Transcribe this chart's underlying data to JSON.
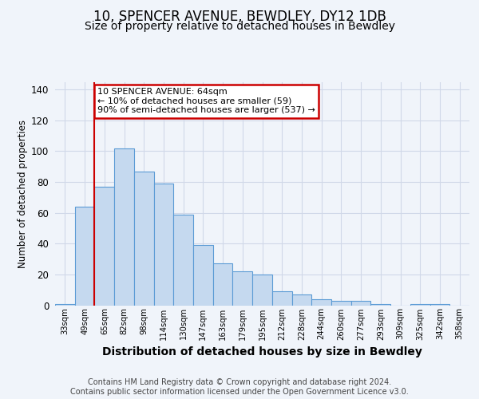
{
  "title": "10, SPENCER AVENUE, BEWDLEY, DY12 1DB",
  "subtitle": "Size of property relative to detached houses in Bewdley",
  "xlabel": "Distribution of detached houses by size in Bewdley",
  "ylabel": "Number of detached properties",
  "footer_line1": "Contains HM Land Registry data © Crown copyright and database right 2024.",
  "footer_line2": "Contains public sector information licensed under the Open Government Licence v3.0.",
  "categories": [
    "33sqm",
    "49sqm",
    "65sqm",
    "82sqm",
    "98sqm",
    "114sqm",
    "130sqm",
    "147sqm",
    "163sqm",
    "179sqm",
    "195sqm",
    "212sqm",
    "228sqm",
    "244sqm",
    "260sqm",
    "277sqm",
    "293sqm",
    "309sqm",
    "325sqm",
    "342sqm",
    "358sqm"
  ],
  "values": [
    1,
    64,
    77,
    102,
    87,
    79,
    59,
    39,
    27,
    22,
    20,
    9,
    7,
    4,
    3,
    3,
    1,
    0,
    1,
    1,
    0
  ],
  "bar_color": "#c5d9ef",
  "bar_edge_color": "#5b9bd5",
  "red_line_x": 1.5,
  "annotation_text": "10 SPENCER AVENUE: 64sqm\n← 10% of detached houses are smaller (59)\n90% of semi-detached houses are larger (537) →",
  "annotation_box_color": "#ffffff",
  "annotation_box_edge": "#cc0000",
  "red_line_color": "#cc0000",
  "ylim": [
    0,
    145
  ],
  "yticks": [
    0,
    20,
    40,
    60,
    80,
    100,
    120,
    140
  ],
  "background_color": "#f0f4fa",
  "plot_bg_color": "#f0f4fa",
  "grid_color": "#d0d8e8",
  "title_fontsize": 12,
  "subtitle_fontsize": 10,
  "footer_fontsize": 7,
  "xlabel_fontsize": 10,
  "ylabel_fontsize": 8.5
}
